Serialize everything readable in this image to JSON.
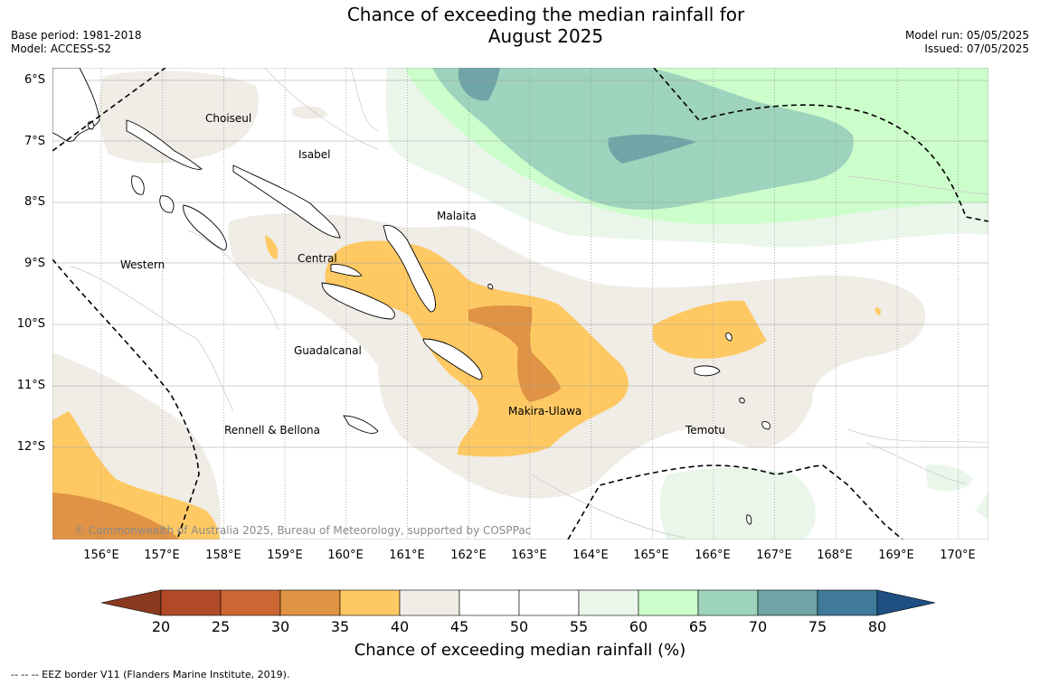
{
  "title": "Chance of exceeding the median rainfall for\nAugust 2025",
  "meta_left": [
    "Base period: 1981-2018",
    "Model: ACCESS-S2"
  ],
  "meta_right": [
    "Model run: 05/05/2025",
    "Issued: 07/05/2025"
  ],
  "lat_labels": [
    "6°S",
    "7°S",
    "8°S",
    "9°S",
    "10°S",
    "11°S",
    "12°S"
  ],
  "lon_labels": [
    "156°E",
    "157°E",
    "158°E",
    "159°E",
    "160°E",
    "161°E",
    "162°E",
    "163°E",
    "164°E",
    "165°E",
    "166°E",
    "167°E",
    "168°E",
    "169°E",
    "170°E"
  ],
  "regions": [
    "Choiseul",
    "Isabel",
    "Malaita",
    "Western",
    "Central",
    "Guadalcanal",
    "Makira-Ulawa",
    "Rennell & Bellona",
    "Temotu"
  ],
  "copyright": "© Commonwealth of Australia 2025, Bureau of Meteorology, supported by COSPPac",
  "colorbar": {
    "ticks": [
      "20",
      "25",
      "30",
      "35",
      "40",
      "45",
      "50",
      "55",
      "60",
      "65",
      "70",
      "75",
      "80"
    ],
    "colors": [
      "#b14a28",
      "#cc6633",
      "#e09344",
      "#fec963",
      "#f0ece6",
      "#ffffff",
      "#ffffff",
      "#eaf6ea",
      "#ccfecc",
      "#9ed3bd",
      "#6fa5a7",
      "#3f7a9b"
    ],
    "under_color": "#8a3a20",
    "over_color": "#1f4f82",
    "label": "Chance of exceeding median rainfall (%)"
  },
  "footer": "--  --  -- EEZ border V11 (Flanders Marine Institute, 2019)."
}
